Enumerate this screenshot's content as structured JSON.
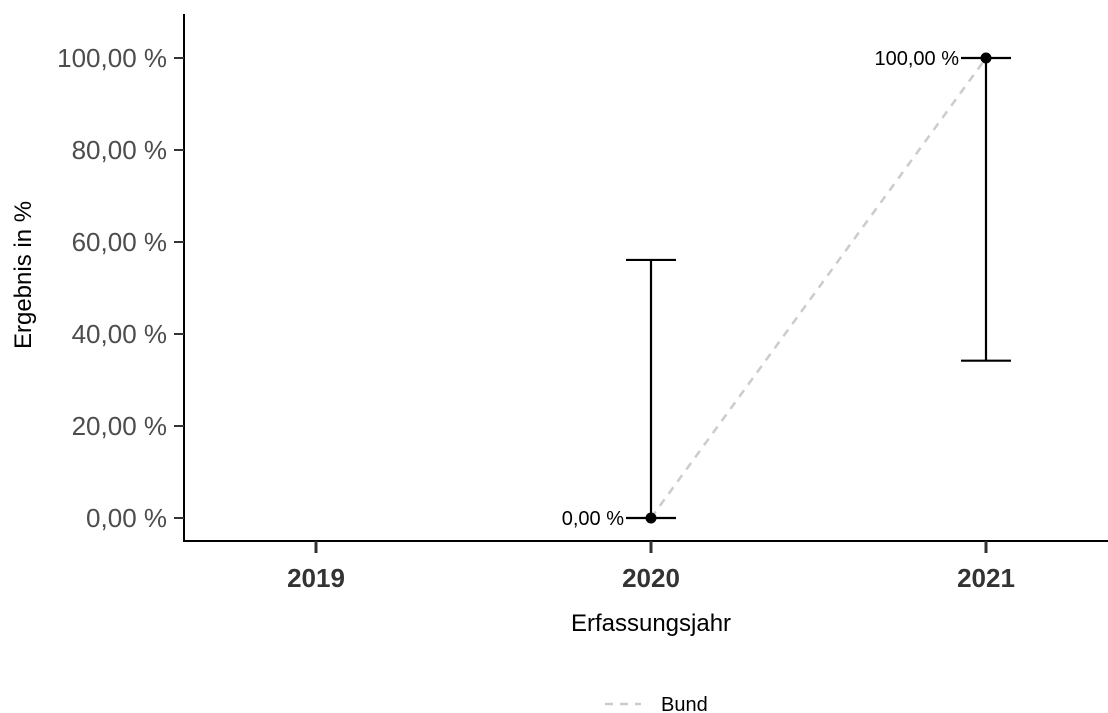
{
  "chart_data": {
    "type": "scatter",
    "title": "",
    "xlabel": "Erfassungsjahr",
    "ylabel": "Ergebnis in %",
    "categories": [
      "2019",
      "2020",
      "2021"
    ],
    "ylim": [
      -5,
      110
    ],
    "yticks": [
      0,
      20,
      40,
      60,
      80,
      100
    ],
    "ytick_labels": [
      "0,00 %",
      "20,00 %",
      "40,00 %",
      "60,00 %",
      "80,00 %",
      "100,00 %"
    ],
    "points": [
      {
        "x": "2020",
        "y": 0,
        "lower": 0,
        "upper": 56.1,
        "label": "0,00 %"
      },
      {
        "x": "2021",
        "y": 100,
        "lower": 34.2,
        "upper": 100,
        "label": "100,00 %"
      }
    ],
    "series": [
      {
        "name": "Bund",
        "style": "dashed",
        "color": "#cccccc",
        "points": [
          {
            "x": "2020",
            "y": 0
          },
          {
            "x": "2021",
            "y": 100
          }
        ]
      }
    ],
    "legend": {
      "position": "bottom",
      "entries": [
        "Bund"
      ]
    },
    "grid": false,
    "colors": {
      "point": "#000000",
      "errorbar": "#000000",
      "reference": "#cccccc"
    }
  }
}
